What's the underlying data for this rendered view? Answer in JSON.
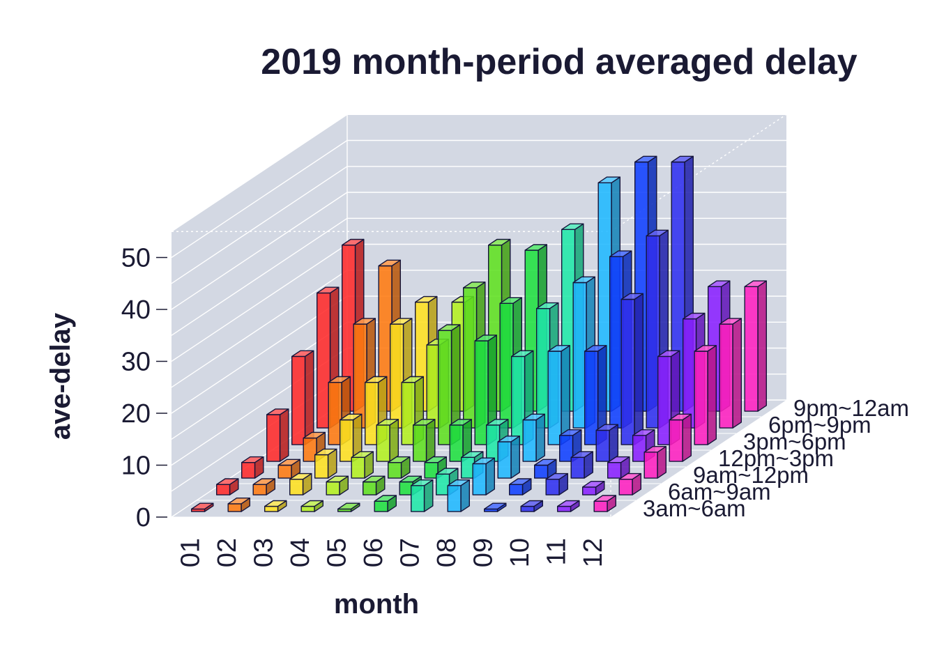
{
  "chart_data": {
    "type": "bar3d",
    "title": "2019 month-period averaged delay",
    "xlabel": "month",
    "ylabel": "ave-delay",
    "zlabel": "",
    "categories": [
      "01",
      "02",
      "03",
      "04",
      "05",
      "06",
      "07",
      "08",
      "09",
      "10",
      "11",
      "12"
    ],
    "series_order_front_to_back": [
      "3am~6am",
      "6am~9am",
      "9am~12pm",
      "12pm~3pm",
      "3pm~6pm",
      "6pm~9pm",
      "9pm~12am"
    ],
    "yticks": [
      0,
      10,
      20,
      30,
      40,
      50
    ],
    "ylim": [
      0,
      55
    ],
    "grid": true,
    "month_colors": [
      "#ff2a2a",
      "#ff7a10",
      "#ffe020",
      "#b4f020",
      "#60e020",
      "#20e040",
      "#20e8a8",
      "#20b8ff",
      "#1040ff",
      "#3030f0",
      "#8a20ff",
      "#ff20c0"
    ],
    "series": [
      {
        "name": "3am~6am",
        "values": [
          0.5,
          1.5,
          1,
          1,
          0.5,
          2,
          5,
          5,
          0.5,
          1,
          1,
          2
        ]
      },
      {
        "name": "6am~9am",
        "values": [
          2,
          2,
          3,
          2.5,
          2.5,
          2.5,
          4,
          6,
          2,
          3,
          1.5,
          3
        ]
      },
      {
        "name": "9am~12pm",
        "values": [
          3,
          2.5,
          4.5,
          4,
          3,
          3,
          4,
          7,
          2.5,
          4,
          3,
          5
        ]
      },
      {
        "name": "12pm~3pm",
        "values": [
          9,
          4.5,
          8,
          7,
          7,
          7,
          7,
          8,
          5,
          6,
          5,
          8
        ]
      },
      {
        "name": "3pm~6pm",
        "values": [
          17,
          12,
          12,
          12,
          22,
          20,
          17,
          18,
          18,
          28,
          17,
          18
        ]
      },
      {
        "name": "6pm~9pm",
        "values": [
          26,
          20,
          20,
          16,
          27,
          24,
          23,
          28,
          33,
          37,
          21,
          20
        ]
      },
      {
        "name": "9pm~12am",
        "values": [
          32,
          28,
          21,
          21,
          32,
          31,
          35,
          44,
          48,
          48,
          24,
          24
        ]
      }
    ]
  }
}
